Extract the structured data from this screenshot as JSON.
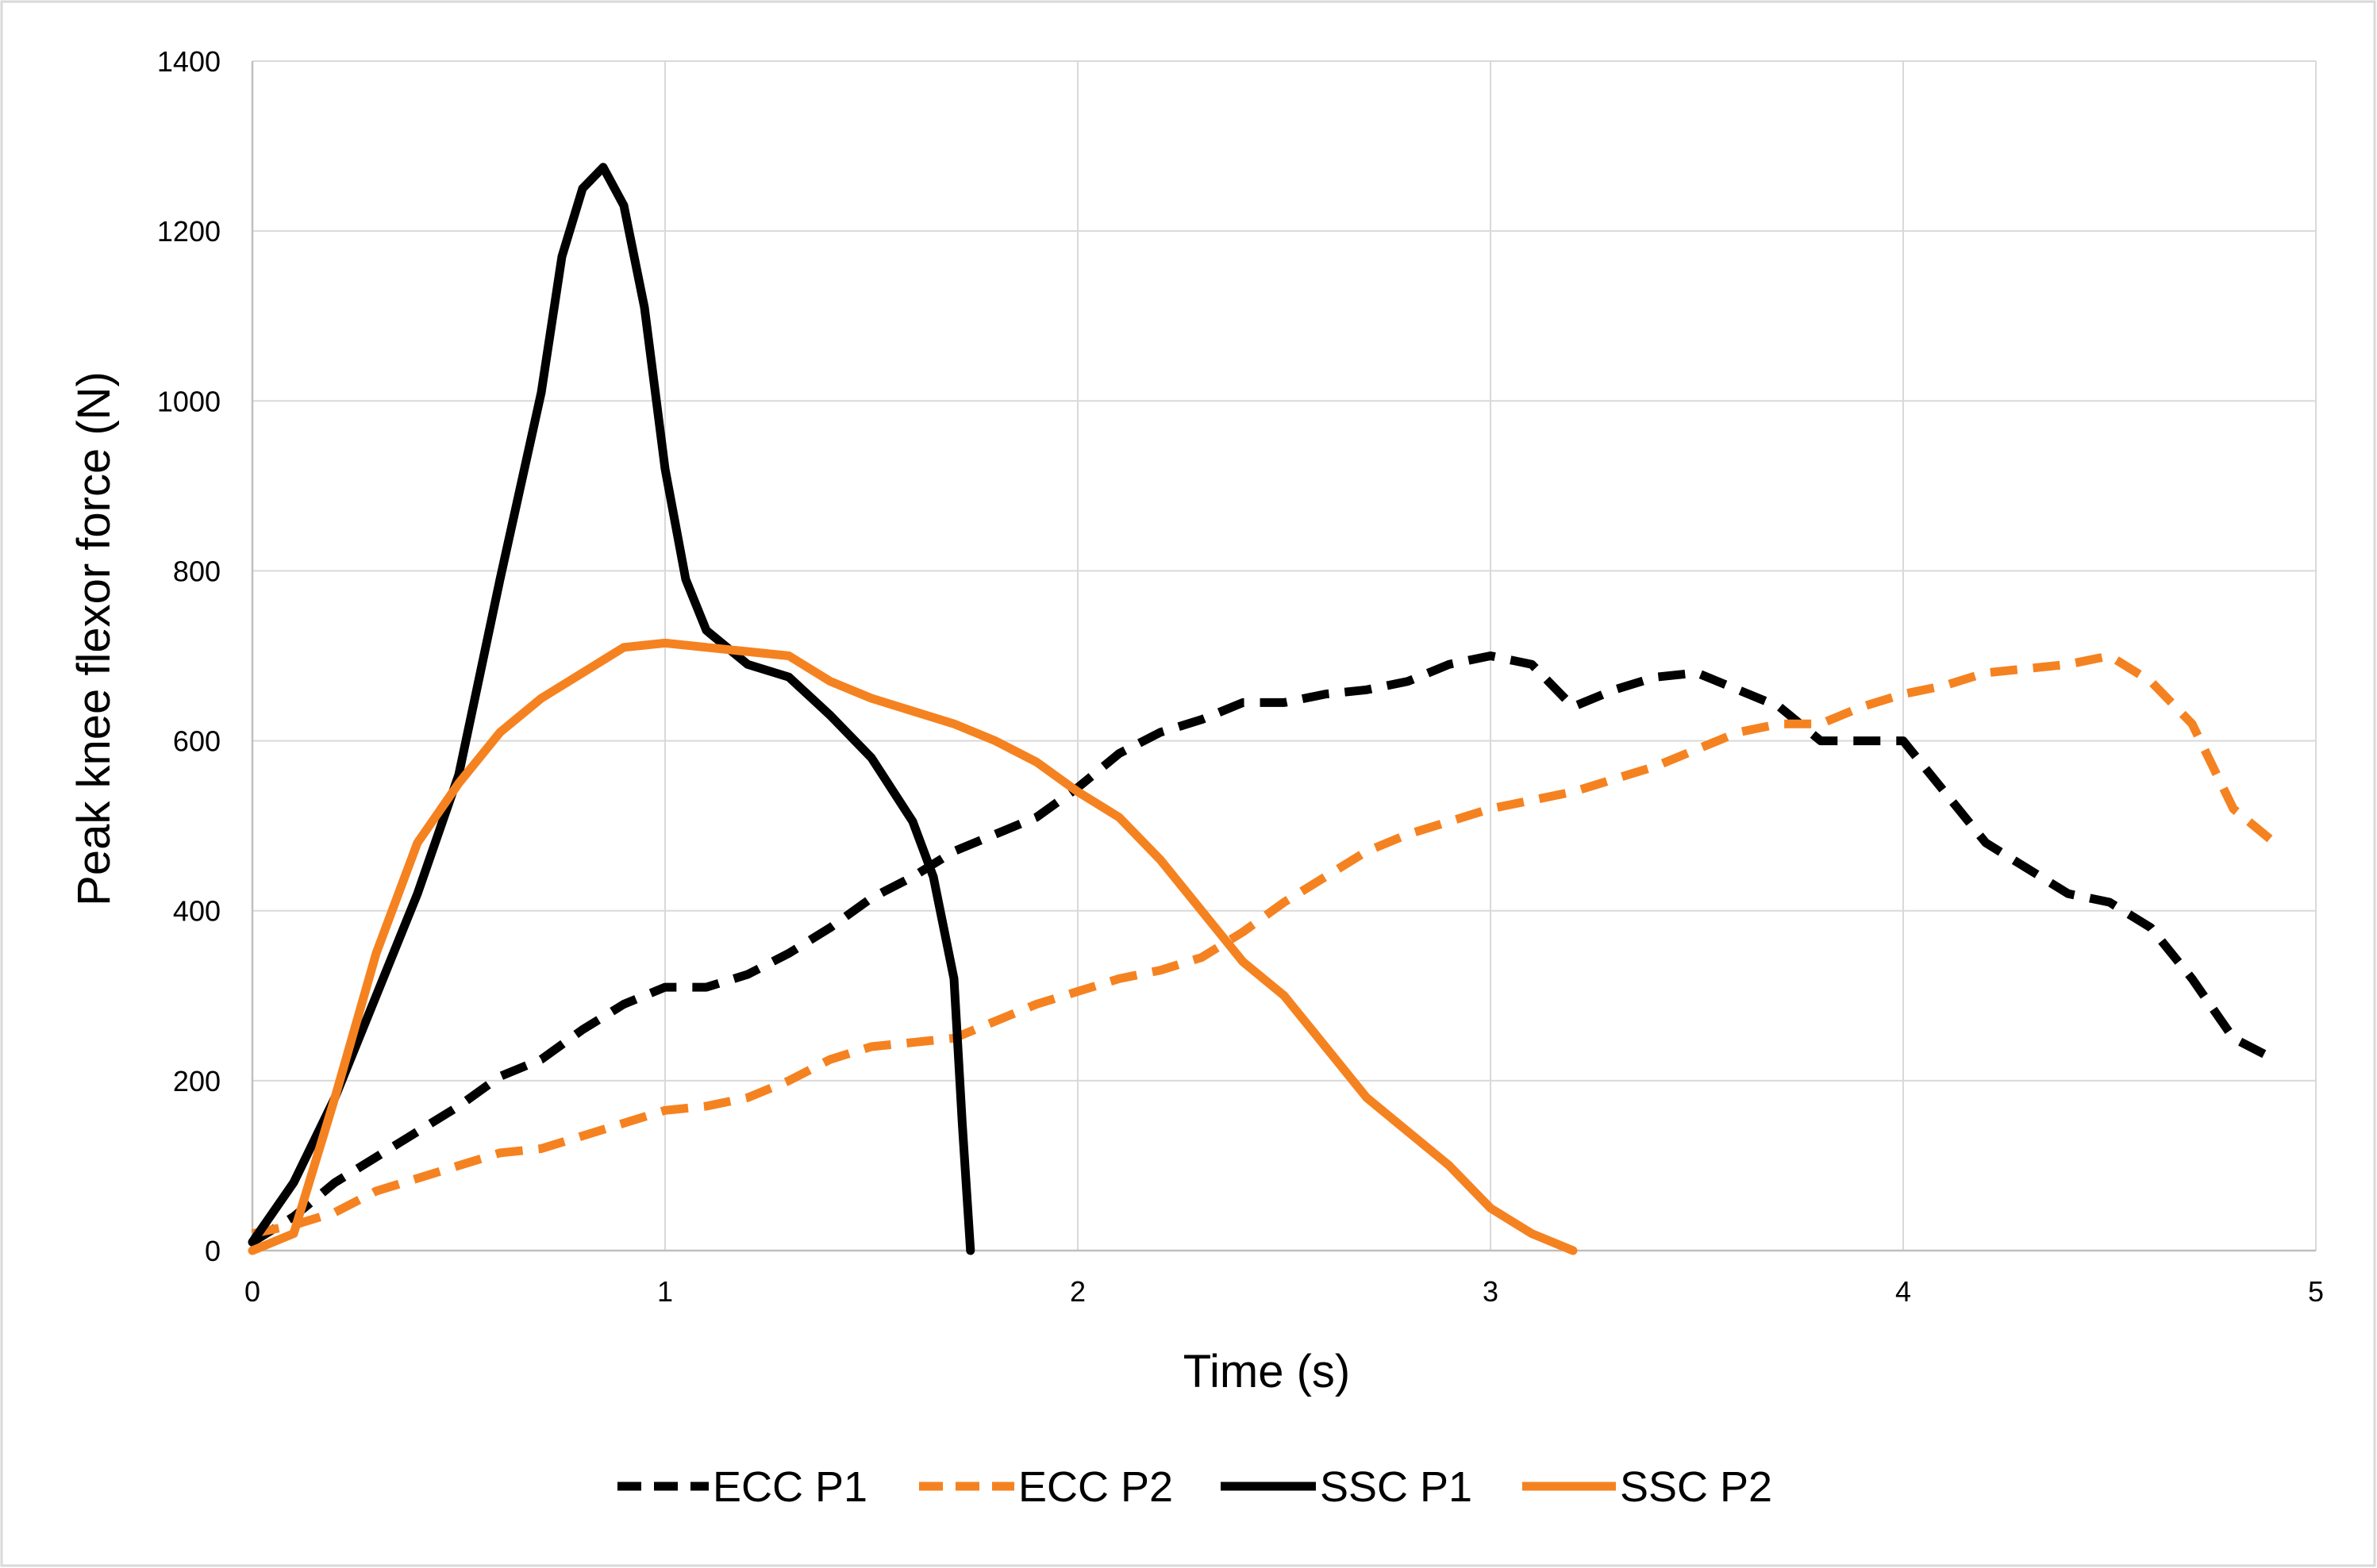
{
  "chart_data": {
    "type": "line",
    "title": "",
    "xlabel": "Time (s)",
    "ylabel": "Peak knee flexor force (N)",
    "xlim": [
      0,
      5
    ],
    "ylim": [
      0,
      1400
    ],
    "xticks": [
      0,
      1,
      2,
      3,
      4,
      5
    ],
    "yticks": [
      0,
      200,
      400,
      600,
      800,
      1000,
      1200,
      1400
    ],
    "x_tick_labels": [
      "0",
      "1",
      "2",
      "3",
      "4",
      "5"
    ],
    "y_tick_labels": [
      "0",
      "200",
      "400",
      "600",
      "800",
      "1000",
      "1200",
      "1400"
    ],
    "grid": true,
    "legend_position": "bottom",
    "series": [
      {
        "name": "ECC P1",
        "color": "#000000",
        "style": "dashed",
        "x": [
          0,
          0.1,
          0.2,
          0.3,
          0.4,
          0.5,
          0.6,
          0.7,
          0.8,
          0.9,
          1.0,
          1.1,
          1.2,
          1.3,
          1.4,
          1.5,
          1.6,
          1.7,
          1.8,
          1.9,
          2.0,
          2.1,
          2.2,
          2.3,
          2.4,
          2.5,
          2.6,
          2.7,
          2.8,
          2.9,
          3.0,
          3.1,
          3.2,
          3.3,
          3.4,
          3.5,
          3.6,
          3.7,
          3.8,
          3.9,
          4.0,
          4.1,
          4.2,
          4.3,
          4.4,
          4.5,
          4.6,
          4.7,
          4.8,
          4.9
        ],
        "y": [
          10,
          40,
          80,
          110,
          140,
          170,
          205,
          225,
          260,
          290,
          310,
          310,
          325,
          350,
          380,
          415,
          440,
          470,
          490,
          510,
          545,
          585,
          610,
          625,
          645,
          645,
          655,
          660,
          670,
          690,
          700,
          690,
          640,
          660,
          675,
          680,
          660,
          640,
          600,
          600,
          600,
          540,
          480,
          450,
          420,
          410,
          380,
          320,
          250,
          225
        ]
      },
      {
        "name": "ECC P2",
        "color": "#f58220",
        "style": "dashed",
        "x": [
          0,
          0.1,
          0.2,
          0.3,
          0.4,
          0.5,
          0.6,
          0.7,
          0.8,
          0.9,
          1.0,
          1.1,
          1.2,
          1.3,
          1.4,
          1.5,
          1.6,
          1.7,
          1.8,
          1.9,
          2.0,
          2.1,
          2.2,
          2.3,
          2.4,
          2.5,
          2.6,
          2.7,
          2.8,
          2.9,
          3.0,
          3.1,
          3.2,
          3.3,
          3.4,
          3.5,
          3.6,
          3.7,
          3.8,
          3.9,
          4.0,
          4.1,
          4.2,
          4.3,
          4.4,
          4.5,
          4.6,
          4.7,
          4.8,
          4.9
        ],
        "y": [
          20,
          30,
          45,
          70,
          85,
          100,
          115,
          120,
          135,
          150,
          165,
          170,
          180,
          200,
          225,
          240,
          245,
          250,
          270,
          290,
          305,
          320,
          330,
          345,
          375,
          410,
          440,
          470,
          490,
          505,
          520,
          530,
          540,
          555,
          570,
          590,
          610,
          620,
          620,
          640,
          655,
          665,
          680,
          685,
          690,
          700,
          670,
          620,
          520,
          480
        ]
      },
      {
        "name": "SSC P1",
        "color": "#000000",
        "style": "solid",
        "x": [
          0,
          0.1,
          0.2,
          0.3,
          0.4,
          0.5,
          0.6,
          0.7,
          0.75,
          0.8,
          0.85,
          0.9,
          0.95,
          1.0,
          1.05,
          1.1,
          1.2,
          1.3,
          1.4,
          1.5,
          1.6,
          1.65,
          1.7,
          1.72,
          1.74
        ],
        "y": [
          10,
          80,
          180,
          300,
          420,
          560,
          790,
          1010,
          1170,
          1250,
          1275,
          1230,
          1110,
          920,
          790,
          730,
          690,
          675,
          630,
          580,
          505,
          440,
          320,
          150,
          0
        ]
      },
      {
        "name": "SSC P2",
        "color": "#f58220",
        "style": "solid",
        "x": [
          0,
          0.1,
          0.2,
          0.3,
          0.4,
          0.5,
          0.6,
          0.7,
          0.8,
          0.9,
          1.0,
          1.1,
          1.2,
          1.3,
          1.4,
          1.5,
          1.6,
          1.7,
          1.8,
          1.9,
          2.0,
          2.1,
          2.2,
          2.3,
          2.4,
          2.5,
          2.6,
          2.7,
          2.8,
          2.9,
          3.0,
          3.1,
          3.2
        ],
        "y": [
          0,
          20,
          180,
          350,
          480,
          550,
          610,
          650,
          680,
          710,
          715,
          710,
          705,
          700,
          670,
          650,
          635,
          620,
          600,
          575,
          540,
          510,
          460,
          400,
          340,
          300,
          240,
          180,
          140,
          100,
          50,
          20,
          0
        ]
      }
    ]
  }
}
